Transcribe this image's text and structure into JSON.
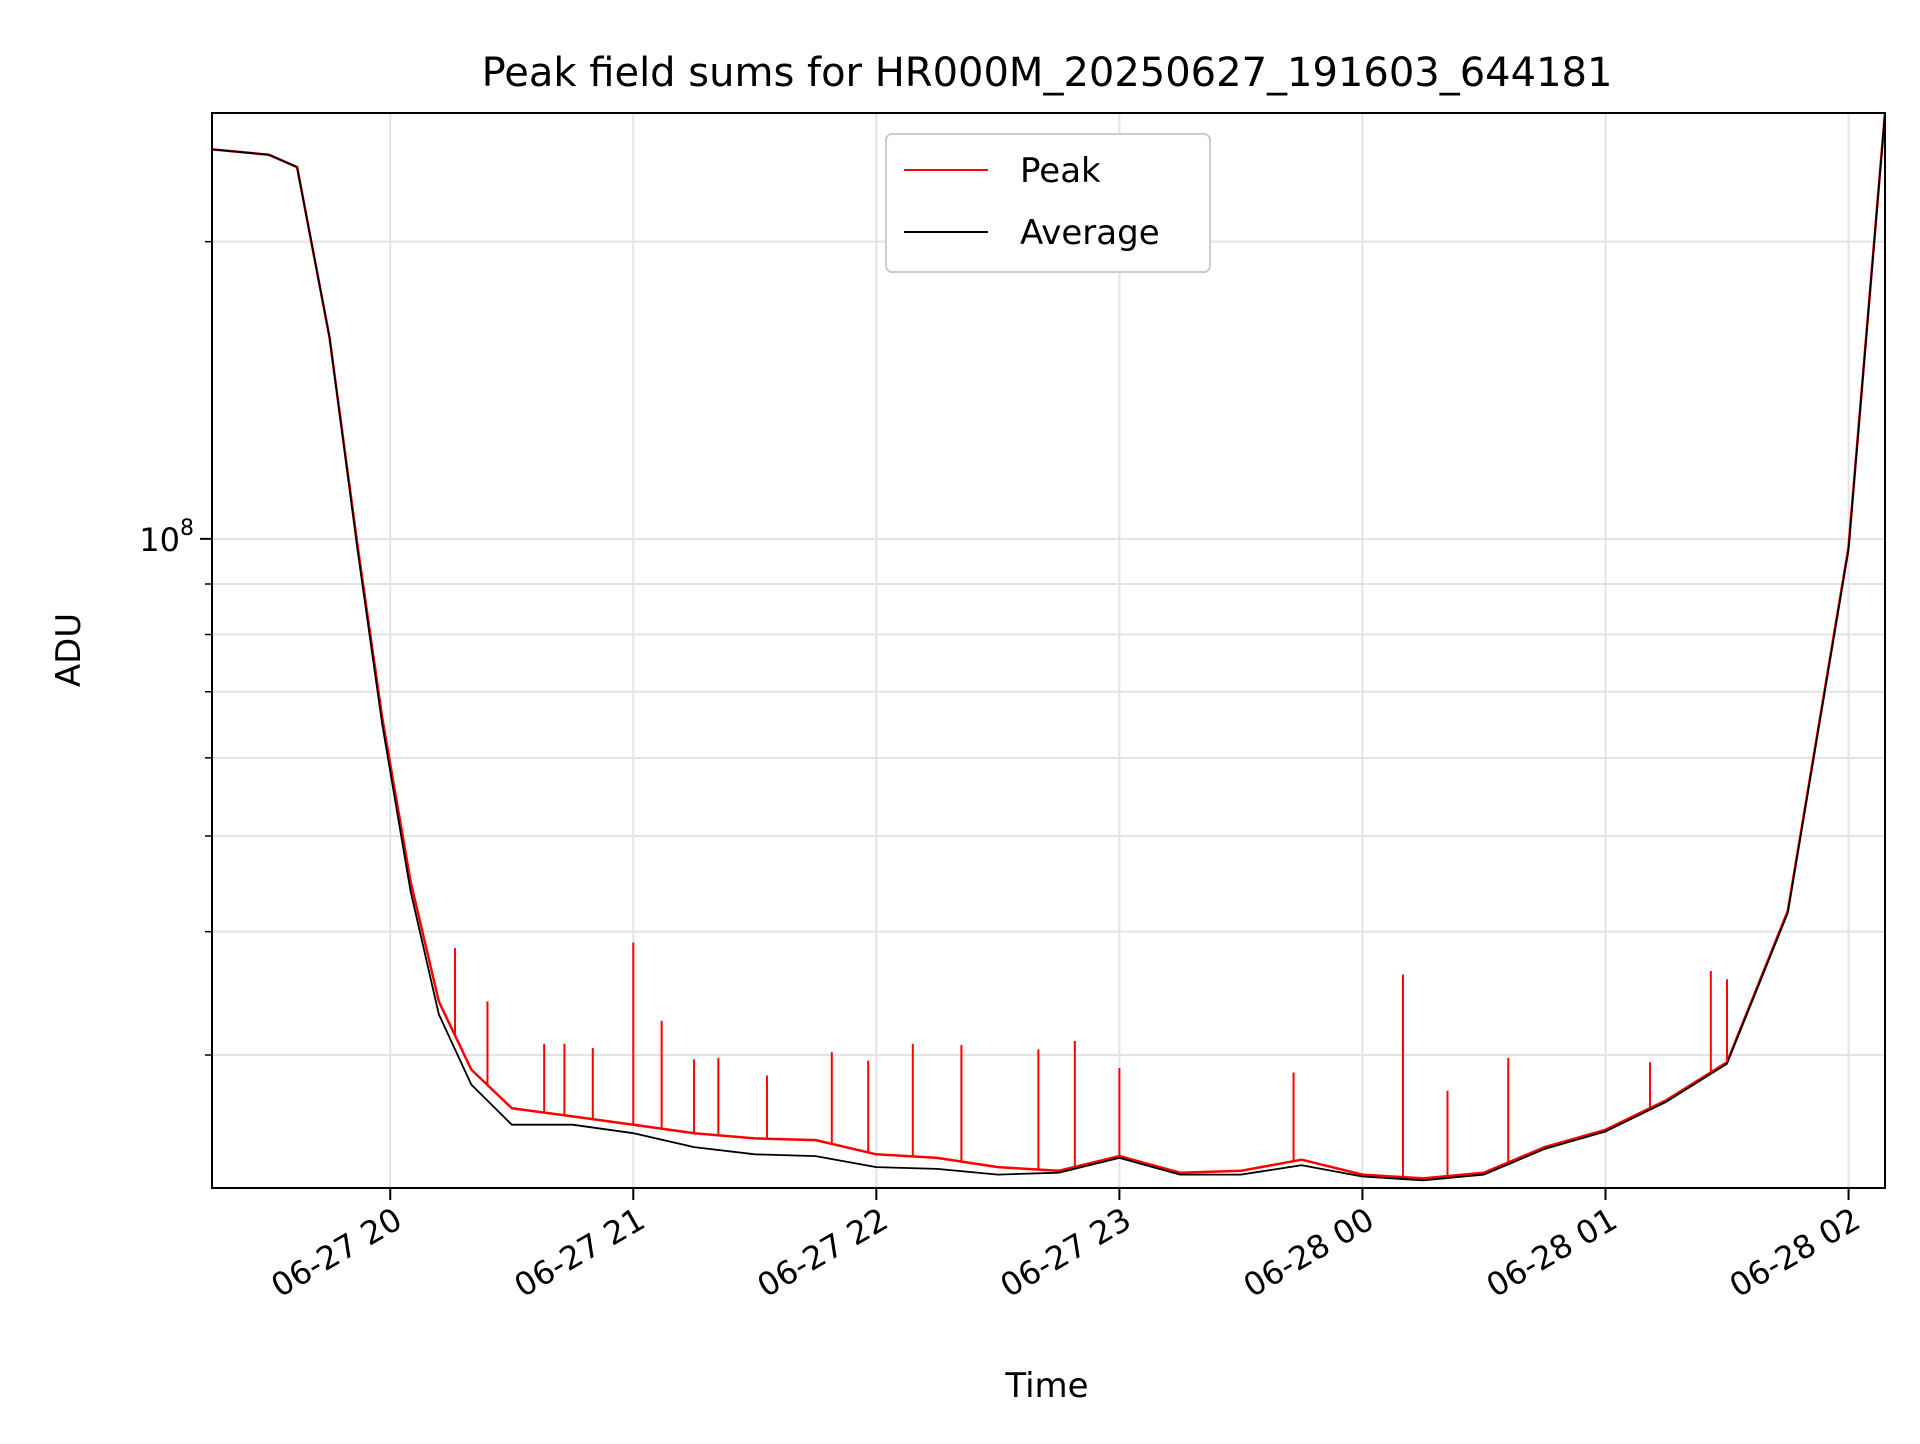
{
  "chart_data": {
    "type": "line",
    "title": "Peak field sums for HR000M_20250627_191603_644181",
    "xlabel": "Time",
    "ylabel": "ADU",
    "y_scale": "log",
    "xlim": [
      "2025-06-27 19:16",
      "2025-06-28 02:09"
    ],
    "ylim": [
      22000000,
      270000000
    ],
    "x_ticks": [
      "06-27 20",
      "06-27 21",
      "06-27 22",
      "06-27 23",
      "06-28 00",
      "06-28 01",
      "06-28 02"
    ],
    "y_ticks": [
      {
        "value": 100000000,
        "base": "10",
        "exp": "8"
      }
    ],
    "grid": true,
    "legend_position": "upper-center",
    "series": [
      {
        "name": "Peak",
        "color": "#ff0000",
        "x": [
          "2025-06-27 19:16",
          "2025-06-27 19:30",
          "2025-06-27 19:37",
          "2025-06-27 19:45",
          "2025-06-27 19:52",
          "2025-06-27 19:58",
          "2025-06-27 20:05",
          "2025-06-27 20:12",
          "2025-06-27 20:20",
          "2025-06-27 20:30",
          "2025-06-27 20:45",
          "2025-06-27 21:00",
          "2025-06-27 21:15",
          "2025-06-27 21:30",
          "2025-06-27 21:45",
          "2025-06-27 22:00",
          "2025-06-27 22:15",
          "2025-06-27 22:30",
          "2025-06-27 22:45",
          "2025-06-27 23:00",
          "2025-06-27 23:15",
          "2025-06-27 23:30",
          "2025-06-27 23:45",
          "2025-06-28 00:00",
          "2025-06-28 00:15",
          "2025-06-28 00:30",
          "2025-06-28 00:45",
          "2025-06-28 01:00",
          "2025-06-28 01:15",
          "2025-06-28 01:30",
          "2025-06-28 01:45",
          "2025-06-28 02:00",
          "2025-06-28 02:09"
        ],
        "y": [
          248000000,
          245000000,
          238000000,
          160000000,
          98000000,
          66000000,
          45000000,
          34000000,
          29000000,
          26500000,
          26000000,
          25500000,
          25000000,
          24700000,
          24600000,
          23800000,
          23600000,
          23100000,
          22900000,
          23700000,
          22800000,
          22900000,
          23500000,
          22700000,
          22500000,
          22800000,
          24200000,
          25200000,
          27000000,
          29500000,
          42000000,
          98000000,
          270000000
        ]
      },
      {
        "name": "Average",
        "color": "#000000",
        "x": [
          "2025-06-27 19:16",
          "2025-06-27 19:30",
          "2025-06-27 19:37",
          "2025-06-27 19:45",
          "2025-06-27 19:52",
          "2025-06-27 19:58",
          "2025-06-27 20:05",
          "2025-06-27 20:12",
          "2025-06-27 20:20",
          "2025-06-27 20:30",
          "2025-06-27 20:45",
          "2025-06-27 21:00",
          "2025-06-27 21:15",
          "2025-06-27 21:30",
          "2025-06-27 21:45",
          "2025-06-27 22:00",
          "2025-06-27 22:15",
          "2025-06-27 22:30",
          "2025-06-27 22:45",
          "2025-06-27 23:00",
          "2025-06-27 23:15",
          "2025-06-27 23:30",
          "2025-06-27 23:45",
          "2025-06-28 00:00",
          "2025-06-28 00:15",
          "2025-06-28 00:30",
          "2025-06-28 00:45",
          "2025-06-28 01:00",
          "2025-06-28 01:15",
          "2025-06-28 01:30",
          "2025-06-28 01:45",
          "2025-06-28 02:00",
          "2025-06-28 02:09"
        ],
        "y": [
          248000000,
          245000000,
          238000000,
          160000000,
          97000000,
          65000000,
          44000000,
          33000000,
          28000000,
          25500000,
          25500000,
          25000000,
          24200000,
          23800000,
          23700000,
          23100000,
          23000000,
          22700000,
          22800000,
          23600000,
          22700000,
          22700000,
          23200000,
          22600000,
          22400000,
          22700000,
          24100000,
          25100000,
          26900000,
          29400000,
          41800000,
          97500000,
          270000000
        ]
      }
    ],
    "spikes": {
      "x": [
        "2025-06-27 20:16",
        "2025-06-27 20:24",
        "2025-06-27 20:38",
        "2025-06-27 20:43",
        "2025-06-27 20:50",
        "2025-06-27 21:00",
        "2025-06-27 21:07",
        "2025-06-27 21:15",
        "2025-06-27 21:21",
        "2025-06-27 21:33",
        "2025-06-27 21:49",
        "2025-06-27 21:58",
        "2025-06-27 22:09",
        "2025-06-27 22:21",
        "2025-06-27 22:40",
        "2025-06-27 22:49",
        "2025-06-27 23:00",
        "2025-06-27 23:43",
        "2025-06-28 00:10",
        "2025-06-28 00:21",
        "2025-06-28 00:36",
        "2025-06-28 01:11",
        "2025-06-28 01:26",
        "2025-06-28 01:30"
      ],
      "y": [
        38500000,
        34000000,
        30800000,
        30800000,
        30500000,
        39000000,
        32500000,
        29700000,
        29800000,
        28600000,
        30200000,
        29600000,
        30800000,
        30700000,
        30400000,
        31000000,
        29100000,
        28800000,
        36200000,
        27600000,
        29800000,
        29500000,
        36500000,
        35800000
      ]
    }
  },
  "legend": {
    "items": [
      {
        "label": "Peak",
        "color": "#ff0000"
      },
      {
        "label": "Average",
        "color": "#000000"
      }
    ]
  }
}
